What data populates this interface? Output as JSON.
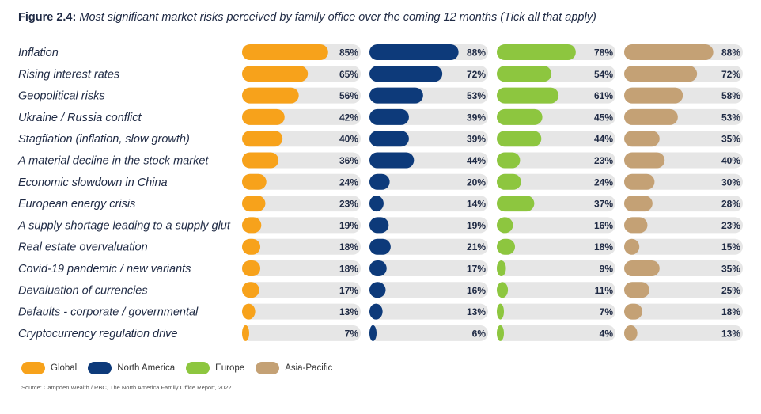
{
  "title": {
    "label": "Figure 2.4:",
    "text": "Most significant market risks perceived by family office over the coming 12 months (Tick all that apply)"
  },
  "chart_data": {
    "type": "bar",
    "orientation": "horizontal",
    "categories": [
      "Inflation",
      "Rising interest rates",
      "Geopolitical risks",
      "Ukraine / Russia conflict",
      "Stagflation (inflation, slow growth)",
      "A material decline in the stock market",
      "Economic slowdown in China",
      "European energy crisis",
      "A supply shortage leading to a supply glut",
      "Real estate overvaluation",
      "Covid-19 pandemic / new variants",
      "Devaluation of currencies",
      "Defaults - corporate / governmental",
      "Cryptocurrency regulation drive"
    ],
    "series": [
      {
        "name": "Global",
        "color": "#f7a21b",
        "values": [
          85,
          65,
          56,
          42,
          40,
          36,
          24,
          23,
          19,
          18,
          18,
          17,
          13,
          7
        ]
      },
      {
        "name": "North America",
        "color": "#0d3a7a",
        "values": [
          88,
          72,
          53,
          39,
          39,
          44,
          20,
          14,
          19,
          21,
          17,
          16,
          13,
          6
        ]
      },
      {
        "name": "Europe",
        "color": "#8dc63f",
        "values": [
          78,
          54,
          61,
          45,
          44,
          23,
          24,
          37,
          16,
          18,
          9,
          11,
          7,
          4
        ]
      },
      {
        "name": "Asia-Pacific",
        "color": "#c4a175",
        "values": [
          88,
          72,
          58,
          53,
          35,
          40,
          30,
          28,
          23,
          15,
          35,
          25,
          18,
          13
        ]
      }
    ],
    "value_suffix": "%",
    "xlim": [
      0,
      100
    ],
    "track_color": "#e6e6e6",
    "legend_position": "bottom-left"
  },
  "source": "Source: Campden Wealth / RBC, The North America Family Office Report, 2022"
}
